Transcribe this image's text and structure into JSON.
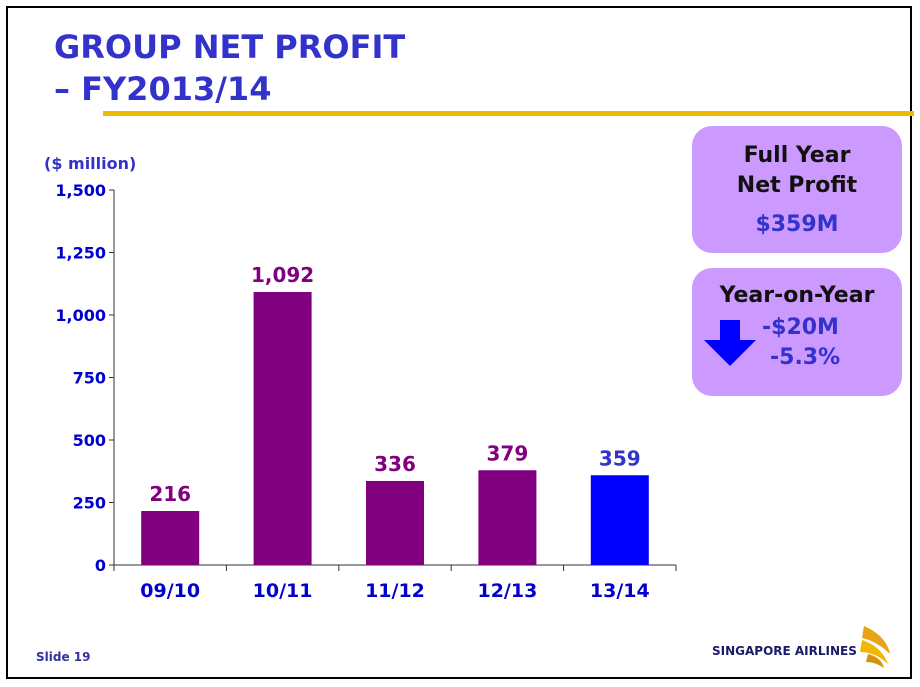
{
  "slide": {
    "title_line1": "GROUP NET PROFIT",
    "title_line2": "– FY2013/14",
    "slide_number": "Slide 19",
    "logo_text": "SINGAPORE AIRLINES"
  },
  "summary": {
    "full_year_line1": "Full Year",
    "full_year_line2": "Net Profit",
    "full_year_value": "$359M",
    "yoy_title": "Year-on-Year",
    "yoy_change": "-$20M",
    "yoy_percent": "-5.3%"
  },
  "colors": {
    "title": "#3333cc",
    "bar_past": "#800080",
    "bar_current": "#0000ff",
    "box_fill": "#cc99ff",
    "rule": "#f0b800",
    "arrow": "#0000ff"
  },
  "chart_data": {
    "type": "bar",
    "title": "",
    "ylabel": "($ million)",
    "xlabel": "",
    "categories": [
      "09/10",
      "10/11",
      "11/12",
      "12/13",
      "13/14"
    ],
    "values": [
      216,
      1092,
      336,
      379,
      359
    ],
    "data_labels": [
      "216",
      "1,092",
      "336",
      "379",
      "359"
    ],
    "highlight_index": 4,
    "ylim": [
      0,
      1500
    ],
    "yticks": [
      0,
      250,
      500,
      750,
      1000,
      1250,
      1500
    ],
    "ytick_labels": [
      "0",
      "250",
      "500",
      "750",
      "1,000",
      "1,250",
      "1,500"
    ],
    "grid": false,
    "legend": "none"
  }
}
